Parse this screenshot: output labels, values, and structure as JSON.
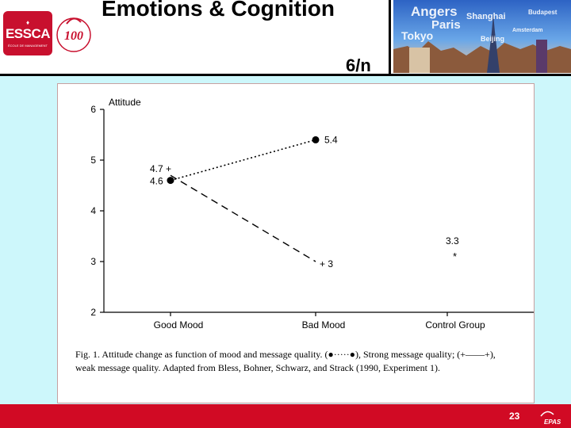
{
  "header": {
    "title": "Emotions & Cognition",
    "page_label": "6/n",
    "logo_text": "ESSCA",
    "logo_subtext": "ÉCOLE DE MANAGEMENT",
    "anniversary_text": "100",
    "banner_words": [
      "Angers",
      "Shanghai",
      "Paris",
      "Budapest",
      "Tokyo",
      "Beijing",
      "Amsterdam"
    ]
  },
  "chart_data": {
    "type": "line",
    "ylabel": "Attitude",
    "xlabel": "",
    "categories": [
      "Good Mood",
      "Bad Mood",
      "Control Group"
    ],
    "ylim": [
      2,
      6
    ],
    "yticks": [
      "2",
      "3",
      "4",
      "5",
      "6"
    ],
    "grid": false,
    "series": [
      {
        "name": "Strong message quality",
        "style": "dotted",
        "marker": "filled-circle",
        "values": [
          4.6,
          5.4,
          null
        ]
      },
      {
        "name": "weak message quality",
        "style": "dashed",
        "marker": "plus",
        "values": [
          4.7,
          3,
          null
        ]
      },
      {
        "name": "Control Group",
        "style": "none",
        "marker": "asterisk",
        "values": [
          null,
          null,
          3.3
        ]
      }
    ],
    "point_labels": [
      {
        "text": "4.7 +",
        "series": 1,
        "index": 0
      },
      {
        "text": "4.6",
        "series": 0,
        "index": 0
      },
      {
        "text": "5.4",
        "series": 0,
        "index": 1
      },
      {
        "text": "+ 3",
        "series": 1,
        "index": 1
      },
      {
        "text": "3.3",
        "series": 2,
        "index": 2
      },
      {
        "text": "*",
        "series": 2,
        "index": 2
      }
    ]
  },
  "figure": {
    "caption": "Fig. 1.   Attitude change as function of mood and message quality. (●·····●), Strong message quality; (+––––+), weak message quality. Adapted from Bless, Bohner, Schwarz, and Strack (1990, Experiment 1)."
  },
  "footer": {
    "slide_number": "23",
    "logo_text": "EPAS"
  },
  "colors": {
    "background": "#cdf7fb",
    "footer": "#d10a24",
    "logo": "#c8102e"
  }
}
